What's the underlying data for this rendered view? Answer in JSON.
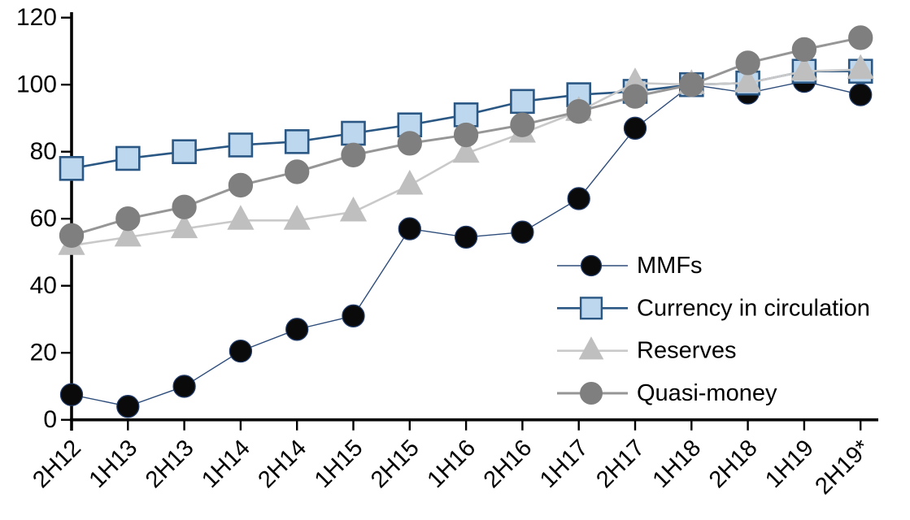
{
  "chart_data": {
    "type": "line",
    "title": "",
    "xlabel": "",
    "ylabel": "",
    "grid": false,
    "legend_position": "inside-right",
    "axis_color": "#000000",
    "y_axis": {
      "min": 0,
      "max": 120,
      "step": 20,
      "tick_labels": [
        "0",
        "20",
        "40",
        "60",
        "80",
        "100",
        "120"
      ]
    },
    "categories": [
      "2H12",
      "1H13",
      "2H13",
      "1H14",
      "2H14",
      "1H15",
      "2H15",
      "1H16",
      "2H16",
      "1H17",
      "2H17",
      "1H18",
      "2H18",
      "1H19",
      "2H19*"
    ],
    "series": [
      {
        "name": "MMFs",
        "marker": "circle",
        "marker_size": 27,
        "fill": "#0a0a0a",
        "stroke": "#1f3864",
        "line_color": "#2e4d7b",
        "line_width": 1.4,
        "values": [
          7.5,
          4,
          10,
          20.5,
          27,
          31,
          57,
          54.5,
          56,
          66,
          87,
          100,
          97.5,
          101,
          97
        ]
      },
      {
        "name": "Currency in circulation",
        "marker": "square",
        "marker_size": 28,
        "fill": "#bdd7ee",
        "stroke": "#2a5783",
        "line_color": "#2a5783",
        "line_width": 2.6,
        "values": [
          75,
          78,
          80,
          82,
          83,
          85.5,
          88,
          91,
          95,
          97,
          98,
          100,
          100.5,
          104,
          104
        ]
      },
      {
        "name": "Reserves",
        "marker": "triangle",
        "marker_size": 31,
        "fill": "#bfbfbf",
        "stroke": "#bfbfbf",
        "line_color": "#c9c9c9",
        "line_width": 2.6,
        "values": [
          52,
          54.5,
          57,
          59.5,
          59.5,
          62,
          70,
          79.5,
          85.5,
          92,
          100.5,
          100,
          100.5,
          104,
          104.5
        ]
      },
      {
        "name": "Quasi-money",
        "marker": "circle",
        "marker_size": 29,
        "fill": "#7f7f7f",
        "stroke": "#7f7f7f",
        "line_color": "#969696",
        "line_width": 3,
        "values": [
          55,
          60,
          63.5,
          70,
          74,
          79,
          82.5,
          85,
          88,
          92,
          96.5,
          100,
          106.5,
          110.5,
          114
        ]
      }
    ]
  }
}
